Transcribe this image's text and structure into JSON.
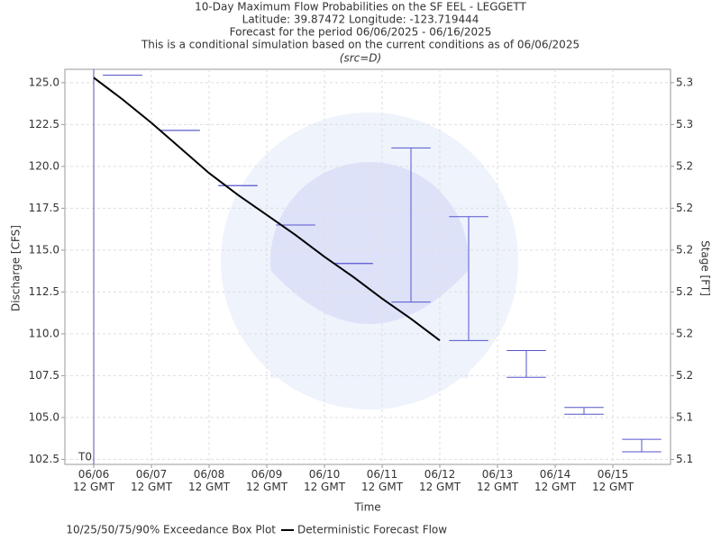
{
  "chart_data": {
    "type": "boxplot",
    "title": "10-Day Maximum Flow Probabilities on the SF EEL - LEGGETT",
    "subtitles": [
      "Latitude: 39.87472 Longitude: -123.719444",
      "Forecast for the period 06/06/2025 - 06/16/2025",
      "This is a conditional simulation based on the current conditions as of 06/06/2025"
    ],
    "source": "(src=D)",
    "x_label": "Time",
    "y_label": "Discharge [CFS]",
    "y2_label": "Stage [FT]",
    "t0_label": "T0",
    "t0_x": 0,
    "xlim": [
      -0.5,
      10
    ],
    "xticks": [
      {
        "value": 0,
        "label": "06/06\n12 GMT"
      },
      {
        "value": 1,
        "label": "06/07\n12 GMT"
      },
      {
        "value": 2,
        "label": "06/08\n12 GMT"
      },
      {
        "value": 3,
        "label": "06/09\n12 GMT"
      },
      {
        "value": 4,
        "label": "06/10\n12 GMT"
      },
      {
        "value": 5,
        "label": "06/11\n12 GMT"
      },
      {
        "value": 6,
        "label": "06/12\n12 GMT"
      },
      {
        "value": 7,
        "label": "06/13\n12 GMT"
      },
      {
        "value": 8,
        "label": "06/14\n12 GMT"
      },
      {
        "value": 9,
        "label": "06/15\n12 GMT"
      }
    ],
    "ylim": [
      102.2,
      125.8
    ],
    "yticks": [
      {
        "value": 102.5,
        "label": "102.5"
      },
      {
        "value": 105,
        "label": "105.0"
      },
      107.5,
      {
        "value": 110,
        "label": "110.0"
      },
      112.5,
      {
        "value": 115,
        "label": "115.0"
      },
      117.5,
      {
        "value": 120,
        "label": "120.0"
      },
      122.5,
      {
        "value": 125,
        "label": "125.0"
      }
    ],
    "y2lim": [
      5.1301,
      5.2811
    ],
    "y2ticks": [
      {
        "value": 5.132,
        "label": "5.1"
      },
      {
        "value": 5.148,
        "label": "5.1"
      },
      {
        "value": 5.164,
        "label": "5.2"
      },
      {
        "value": 5.18,
        "label": "5.2"
      },
      {
        "value": 5.196,
        "label": "5.2"
      },
      {
        "value": 5.212,
        "label": "5.2"
      },
      {
        "value": 5.228,
        "label": "5.2"
      },
      {
        "value": 5.244,
        "label": "5.2"
      },
      {
        "value": 5.26,
        "label": "5.3"
      },
      {
        "value": 5.276,
        "label": "5.3"
      }
    ],
    "grid": true,
    "boxes": {
      "name": "10/25/50/75/90% Exceedance Box Plot",
      "color": "#5555cc",
      "x": [
        0.5,
        1.5,
        2.5,
        3.5,
        4.5,
        5.5,
        6.5,
        7.5,
        8.5,
        9.5
      ],
      "high": [
        125.45,
        122.15,
        118.85,
        116.5,
        114.2,
        121.1,
        117.0,
        109.0,
        105.6,
        103.7
      ],
      "low": [
        125.45,
        122.15,
        118.85,
        116.5,
        114.2,
        111.9,
        109.6,
        107.4,
        105.2,
        102.95
      ]
    },
    "series": [
      {
        "name": "Deterministic Forecast Flow",
        "color": "#000000",
        "x": [
          0,
          0.5,
          1,
          1.5,
          2,
          2.5,
          3,
          3.5,
          4,
          4.5,
          5,
          5.5,
          6
        ],
        "values": [
          125.3,
          124.0,
          122.6,
          121.1,
          119.6,
          118.3,
          117.1,
          115.9,
          114.6,
          113.4,
          112.1,
          110.9,
          109.6
        ]
      }
    ]
  }
}
